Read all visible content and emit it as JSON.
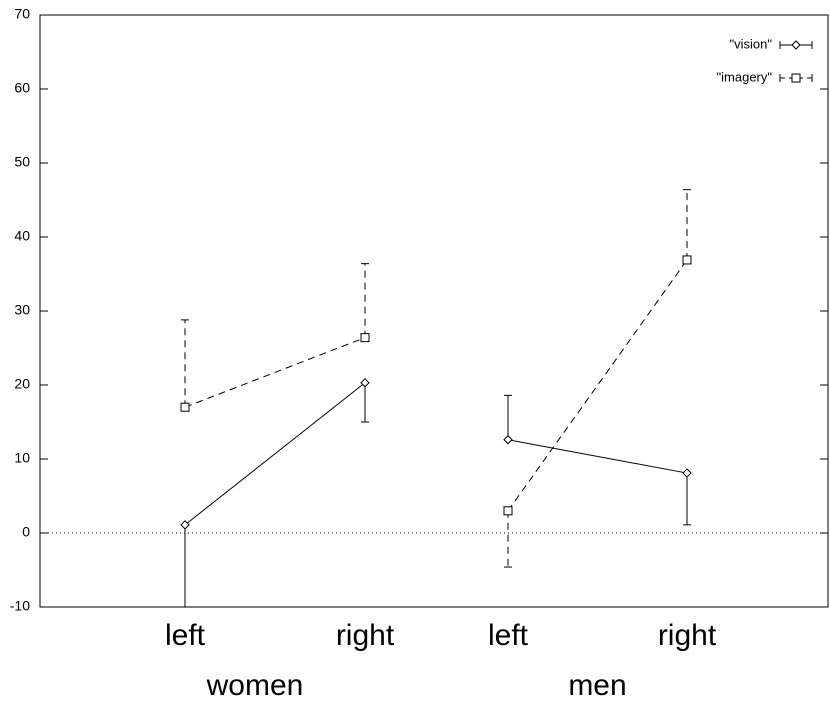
{
  "chart_data": {
    "type": "line",
    "categories": [
      "left",
      "right",
      "left",
      "right"
    ],
    "groups": [
      "women",
      "men"
    ],
    "series": [
      {
        "name": "\"vision\"",
        "color": "#000000",
        "marker": "diamond",
        "dash": false,
        "values": [
          1.1,
          20.3,
          12.6,
          8.1
        ],
        "errors": [
          11.1,
          5.3,
          6.0,
          7.0
        ],
        "error_direction": [
          "down",
          "down",
          "up",
          "down"
        ]
      },
      {
        "name": "\"imagery\"",
        "color": "#000000",
        "marker": "square",
        "dash": true,
        "values": [
          17.0,
          26.4,
          3.0,
          36.9
        ],
        "errors": [
          11.8,
          10.0,
          7.6,
          9.5
        ],
        "error_direction": [
          "up",
          "up",
          "down",
          "up"
        ]
      }
    ],
    "ylim": [
      -10,
      70
    ],
    "yticks": [
      -10,
      0,
      10,
      20,
      30,
      40,
      50,
      60,
      70
    ],
    "zero_line": true,
    "legend": "top-right"
  }
}
